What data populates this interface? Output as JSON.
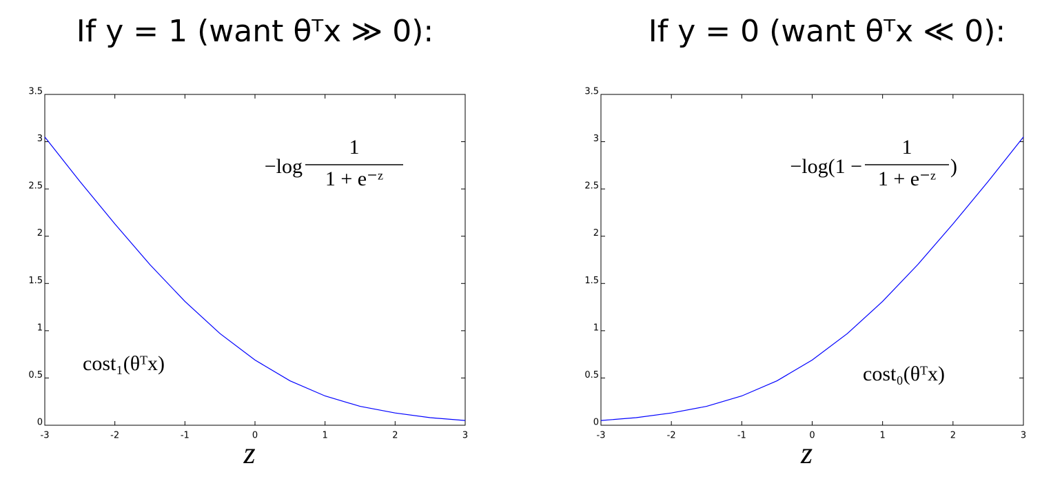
{
  "chart_data": [
    {
      "type": "line",
      "title": "If y = 1 (want θᵀx ≫ 0):",
      "xlabel": "z",
      "annotations": {
        "lead": "−log",
        "num": "1",
        "den": "1 + e⁻ᶻ",
        "label": "cost₁(θᵀx)"
      },
      "x": [
        -3,
        -2.5,
        -2,
        -1.5,
        -1,
        -0.5,
        0,
        0.5,
        1,
        1.5,
        2,
        2.5,
        3
      ],
      "series": [
        {
          "color": "#0000ff",
          "values": [
            3.05,
            2.58,
            2.13,
            1.7,
            1.31,
            0.97,
            0.69,
            0.47,
            0.31,
            0.2,
            0.13,
            0.08,
            0.05
          ]
        }
      ],
      "xlim": [
        -3,
        3
      ],
      "xticks": [
        -3,
        -2,
        -1,
        0,
        1,
        2,
        3
      ],
      "ylim": [
        0,
        3.5
      ],
      "yticks": [
        0,
        0.5,
        1,
        1.5,
        2,
        2.5,
        3,
        3.5
      ],
      "grid": false
    },
    {
      "type": "line",
      "title": "If y = 0 (want θᵀx ≪ 0):",
      "xlabel": "z",
      "annotations": {
        "lead": "−log(1 −",
        "num": "1",
        "den": "1 + e⁻ᶻ",
        "tail": ")",
        "label": "cost₀(θᵀx)"
      },
      "x": [
        -3,
        -2.5,
        -2,
        -1.5,
        -1,
        -0.5,
        0,
        0.5,
        1,
        1.5,
        2,
        2.5,
        3
      ],
      "series": [
        {
          "color": "#0000ff",
          "values": [
            0.05,
            0.08,
            0.13,
            0.2,
            0.31,
            0.47,
            0.69,
            0.97,
            1.31,
            1.7,
            2.13,
            2.58,
            3.05
          ]
        }
      ],
      "xlim": [
        -3,
        3
      ],
      "xticks": [
        -3,
        -2,
        -1,
        0,
        1,
        2,
        3
      ],
      "ylim": [
        0,
        3.5
      ],
      "yticks": [
        0,
        0.5,
        1,
        1.5,
        2,
        2.5,
        3,
        3.5
      ],
      "grid": false
    }
  ]
}
